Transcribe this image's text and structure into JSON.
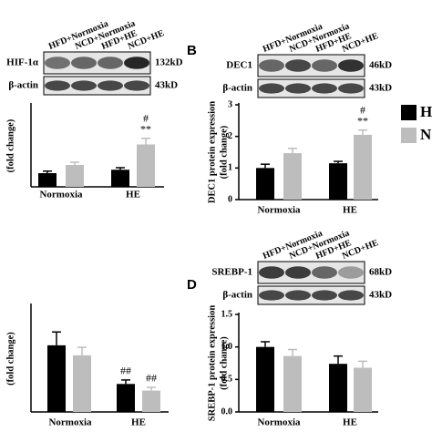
{
  "panels": {
    "b": "B",
    "d": "D"
  },
  "blots": [
    {
      "lanes": [
        "HFD+Normoxia",
        "NCD+Normoxia",
        "HFD+HE",
        "NCD+HE"
      ],
      "rows": [
        {
          "protein": "HIF-1α",
          "size": "132kD"
        },
        {
          "protein": "β-actin",
          "size": "43kD"
        }
      ]
    },
    {
      "lanes": [
        "HFD+Normoxia",
        "NCD+Normoxia",
        "HFD+HE",
        "NCD+HE"
      ],
      "rows": [
        {
          "protein": "DEC1",
          "size": "46kD"
        },
        {
          "protein": "β-actin",
          "size": "43kD"
        }
      ]
    },
    {
      "lanes": [
        "HFD+Normoxia",
        "NCD+Normoxia",
        "HFD+HE",
        "NCD+HE"
      ],
      "rows": [
        {
          "protein": "SREBP-1",
          "size": "68kD"
        },
        {
          "protein": "β-actin",
          "size": "43kD"
        }
      ]
    }
  ],
  "chart_data": [
    {
      "type": "bar",
      "categories": [
        "Normoxia",
        "HE"
      ],
      "ylabel": [
        "(fold change)"
      ],
      "series": [
        {
          "color": "#000000",
          "values": [
            1.0,
            1.25
          ],
          "errors": [
            0.15,
            0.15
          ]
        },
        {
          "color": "#bdbdbd",
          "values": [
            1.6,
            3.1
          ],
          "errors": [
            0.2,
            0.45
          ]
        }
      ],
      "ylim": [
        0,
        6
      ],
      "annotations": [
        "#",
        "**"
      ]
    },
    {
      "type": "bar",
      "categories": [
        "Normoxia",
        "HE"
      ],
      "ylabel": [
        "DEC1 protein expression",
        "(fold change)"
      ],
      "series": [
        {
          "name": "H",
          "color": "#000000",
          "values": [
            1.0,
            1.15
          ],
          "errors": [
            0.12,
            0.06
          ]
        },
        {
          "name": "N",
          "color": "#bdbdbd",
          "values": [
            1.47,
            2.05
          ],
          "errors": [
            0.15,
            0.15
          ]
        }
      ],
      "ylim": [
        0,
        3
      ],
      "yticks": [
        0,
        1,
        2,
        3
      ],
      "annotations": [
        "#",
        "**"
      ]
    },
    {
      "type": "bar",
      "categories": [
        "Normoxia",
        "HE"
      ],
      "ylabel": [
        "(fold change)"
      ],
      "series": [
        {
          "color": "#000000",
          "values": [
            1.0,
            0.42
          ],
          "errors": [
            0.2,
            0.06
          ]
        },
        {
          "color": "#bdbdbd",
          "values": [
            0.85,
            0.32
          ],
          "errors": [
            0.12,
            0.05
          ]
        }
      ],
      "ylim": [
        0,
        1.6
      ],
      "annotations": [
        "##",
        "##"
      ]
    },
    {
      "type": "bar",
      "categories": [
        "Normoxia",
        "HE"
      ],
      "ylabel": [
        "SREBP-1 protein expression",
        "(fold change)"
      ],
      "series": [
        {
          "color": "#000000",
          "values": [
            1.0,
            0.74
          ],
          "errors": [
            0.08,
            0.12
          ]
        },
        {
          "color": "#bdbdbd",
          "values": [
            0.86,
            0.68
          ],
          "errors": [
            0.1,
            0.1
          ]
        }
      ],
      "ylim": [
        0,
        1.5
      ],
      "yticks": [
        {
          "value": 0,
          "label": "0.0"
        },
        0.5,
        {
          "value": 1,
          "label": "1.0"
        },
        1.5
      ]
    }
  ]
}
